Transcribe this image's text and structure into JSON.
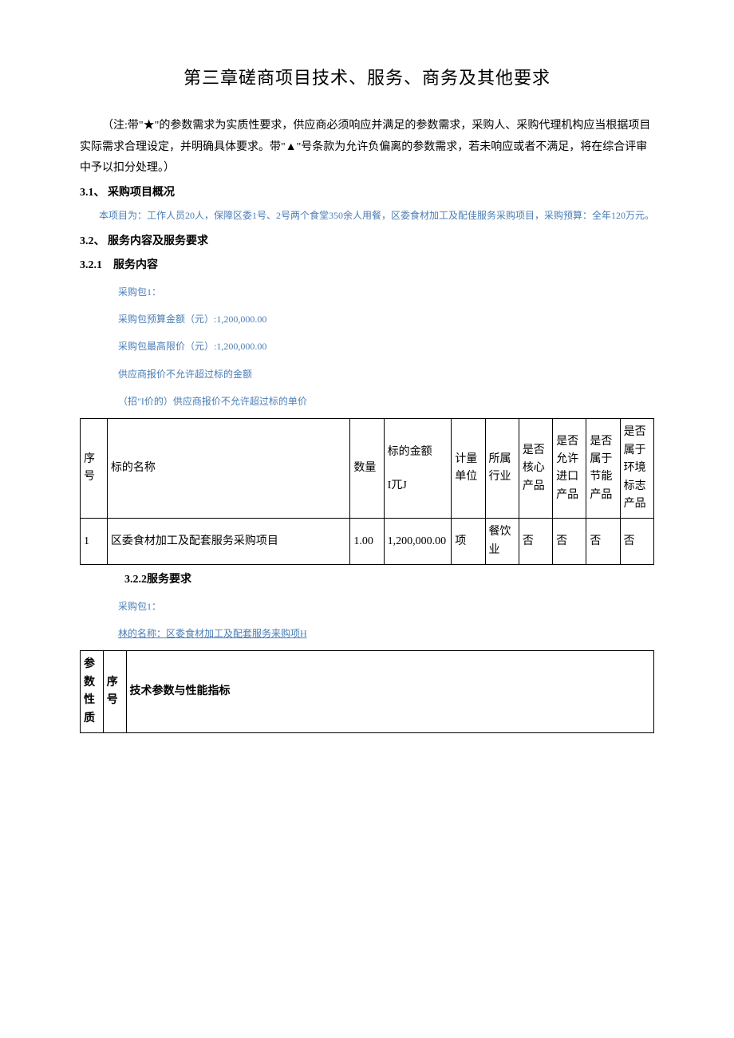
{
  "title": "第三章磋商项目技术、服务、商务及其他要求",
  "intro": "（注:带\"★\"的参数需求为实质性要求，供应商必须响应并满足的参数需求，采购人、采购代理机构应当根据项目实际需求合理设定，并明确具体要求。带\"▲\"号条款为允许负偏离的参数需求，若未响应或者不满足，将在综合评审中予以扣分处理。）",
  "section_3_1": {
    "header": "3.1、 采购项目概况",
    "body": "本项目为：工作人员20人，保障区委1号、2号两个食堂350余人用餐，区委食材加工及配佳服务采购项目，采购预算：全年120万元。"
  },
  "section_3_2": {
    "header": "3.2、 服务内容及服务要求"
  },
  "section_3_2_1": {
    "header": "3.2.1　服务内容",
    "lines": [
      "采购包1：",
      "采购包预算金额（元）:1,200,000.00",
      "采购包最高限价（元）:1,200,000.00",
      "供应商报价不允许超过标的金额",
      "（招\"I价的）供应商报价不允许超过标的单价"
    ]
  },
  "main_table": {
    "headers": {
      "seq": "序号",
      "name": "标的名称",
      "qty": "数量",
      "amount_line1": "标的金额",
      "amount_line2": "I兀J",
      "unit": "计量单位",
      "industry": "所属行业",
      "core": "是否核心产品",
      "import": "是否允许进口产品",
      "energy": "是否属于节能产品",
      "env": "是否属于环境标志产品"
    },
    "row": {
      "seq": "1",
      "name": "区委食材加工及配套服务采购项目",
      "qty": "1.00",
      "amount": "1,200,000.00",
      "unit": "项",
      "industry": "餐饮业",
      "core": "否",
      "import": "否",
      "energy": "否",
      "env": "否"
    }
  },
  "section_3_2_2": {
    "header": "3.2.2服务要求",
    "lines": [
      "采购包1：",
      "林的名称：区委食材加工及配套服务来购项H"
    ]
  },
  "second_table": {
    "headers": {
      "c1": "参数性质",
      "c2": "序号",
      "c3": "技术参数与性能指标"
    }
  },
  "colors": {
    "text": "#000000",
    "blue": "#4a7db5",
    "background": "#ffffff",
    "border": "#000000"
  }
}
